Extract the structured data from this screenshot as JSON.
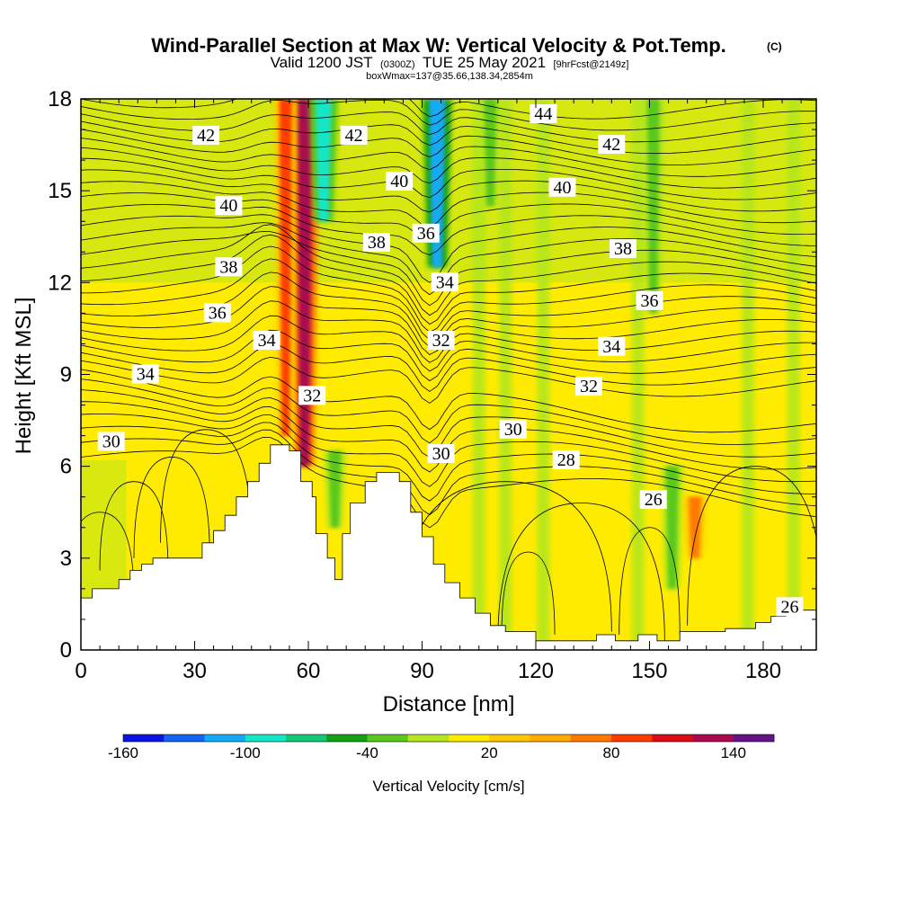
{
  "chart_data": {
    "type": "heatmap",
    "title": "Wind-Parallel Section at Max W: Vertical Velocity & Pot.Temp.",
    "title_mark": "(C)",
    "subtitle_parts": [
      "Valid 1200 JST",
      "(0300Z)",
      "TUE 25 May 2021",
      "[9hrFcst@2149z]"
    ],
    "subtitle2": "boxWmax=137@35.66,138.34,2854m",
    "xlabel": "Distance [nm]",
    "ylabel": "Height [Kft MSL]",
    "xlim": [
      0,
      194
    ],
    "ylim": [
      0,
      18
    ],
    "xticks": [
      0,
      30,
      60,
      90,
      120,
      150,
      180
    ],
    "yticks": [
      0,
      3,
      6,
      9,
      12,
      15,
      18
    ],
    "grid": false,
    "colorbar": {
      "label": "Vertical Velocity [cm/s]",
      "ticks": [
        -160,
        -100,
        -40,
        20,
        80,
        140
      ],
      "range": [
        -160,
        160
      ],
      "colors": [
        "#0a14e6",
        "#1464f0",
        "#14aaf5",
        "#14e6c8",
        "#14c878",
        "#14a014",
        "#5ac81e",
        "#b4e61e",
        "#ffeb00",
        "#ffc800",
        "#ffaa00",
        "#ff7800",
        "#ff3c00",
        "#dc0a14",
        "#aa0a50",
        "#641486"
      ]
    },
    "w_field": [
      {
        "name": "updraft-core",
        "x": 59,
        "z_range": [
          6,
          18
        ],
        "w": 120
      },
      {
        "name": "updraft-flank",
        "x": 54,
        "z_range": [
          7,
          18
        ],
        "w": 80
      },
      {
        "name": "downdraft-a",
        "x": 64,
        "z_range": [
          14,
          18
        ],
        "w": -100
      },
      {
        "name": "downdraft-b",
        "x": 94,
        "z_range": [
          12.5,
          18
        ],
        "w": -110
      },
      {
        "name": "downdraft-low",
        "x": 67,
        "z_range": [
          4,
          6.5
        ],
        "w": -40
      },
      {
        "name": "downdraft-mid",
        "x": 108,
        "z_range": [
          14.5,
          18
        ],
        "w": -40
      },
      {
        "name": "downdraft-east",
        "x": 151,
        "z_range": [
          11,
          18
        ],
        "w": -40
      },
      {
        "name": "downdraft-lee",
        "x": 156,
        "z_range": [
          2,
          6
        ],
        "w": -40
      },
      {
        "name": "updraft-lee",
        "x": 162,
        "z_range": [
          3,
          5
        ],
        "w": 60
      }
    ],
    "contour_variable": "Potential temperature",
    "contour_labels": [
      {
        "value": 42,
        "x": 33,
        "z": 16.8
      },
      {
        "value": 42,
        "x": 72,
        "z": 16.8
      },
      {
        "value": 44,
        "x": 122,
        "z": 17.5
      },
      {
        "value": 42,
        "x": 140,
        "z": 16.5
      },
      {
        "value": 40,
        "x": 39,
        "z": 14.5
      },
      {
        "value": 40,
        "x": 84,
        "z": 15.3
      },
      {
        "value": 40,
        "x": 127,
        "z": 15.1
      },
      {
        "value": 38,
        "x": 39,
        "z": 12.5
      },
      {
        "value": 38,
        "x": 78,
        "z": 13.3
      },
      {
        "value": 36,
        "x": 91,
        "z": 13.6
      },
      {
        "value": 38,
        "x": 143,
        "z": 13.1
      },
      {
        "value": 36,
        "x": 36,
        "z": 11.0
      },
      {
        "value": 34,
        "x": 96,
        "z": 12.0
      },
      {
        "value": 36,
        "x": 150,
        "z": 11.4
      },
      {
        "value": 34,
        "x": 49,
        "z": 10.1
      },
      {
        "value": 32,
        "x": 95,
        "z": 10.1
      },
      {
        "value": 34,
        "x": 140,
        "z": 9.9
      },
      {
        "value": 34,
        "x": 17,
        "z": 9.0
      },
      {
        "value": 32,
        "x": 61,
        "z": 8.3
      },
      {
        "value": 32,
        "x": 134,
        "z": 8.6
      },
      {
        "value": 30,
        "x": 8,
        "z": 6.8
      },
      {
        "value": 30,
        "x": 95,
        "z": 6.4
      },
      {
        "value": 30,
        "x": 114,
        "z": 7.2
      },
      {
        "value": 28,
        "x": 128,
        "z": 6.2
      },
      {
        "value": 26,
        "x": 151,
        "z": 4.9
      },
      {
        "value": 26,
        "x": 187,
        "z": 1.4
      }
    ],
    "terrain": [
      [
        0,
        1.7
      ],
      [
        3,
        2.0
      ],
      [
        10,
        2.3
      ],
      [
        13,
        2.6
      ],
      [
        16,
        2.8
      ],
      [
        19,
        3.0
      ],
      [
        32,
        3.5
      ],
      [
        35,
        3.9
      ],
      [
        38,
        4.4
      ],
      [
        41,
        5.0
      ],
      [
        44,
        5.5
      ],
      [
        47,
        6.1
      ],
      [
        50,
        6.7
      ],
      [
        55,
        6.5
      ],
      [
        58,
        5.5
      ],
      [
        61,
        5.0
      ],
      [
        62,
        3.8
      ],
      [
        65,
        3.0
      ],
      [
        67,
        2.3
      ],
      [
        69,
        3.8
      ],
      [
        71,
        4.8
      ],
      [
        75,
        5.5
      ],
      [
        78,
        5.8
      ],
      [
        84,
        5.5
      ],
      [
        87,
        4.5
      ],
      [
        90,
        3.7
      ],
      [
        93,
        2.8
      ],
      [
        96,
        2.2
      ],
      [
        100,
        1.7
      ],
      [
        104,
        1.2
      ],
      [
        108,
        0.8
      ],
      [
        112,
        0.6
      ],
      [
        120,
        0.3
      ],
      [
        132,
        0.3
      ],
      [
        136,
        0.5
      ],
      [
        141,
        0.3
      ],
      [
        147,
        0.5
      ],
      [
        152,
        0.3
      ],
      [
        158,
        0.6
      ],
      [
        170,
        0.7
      ],
      [
        178,
        0.9
      ],
      [
        182,
        1.1
      ],
      [
        186,
        1.3
      ],
      [
        194,
        1.3
      ]
    ]
  }
}
